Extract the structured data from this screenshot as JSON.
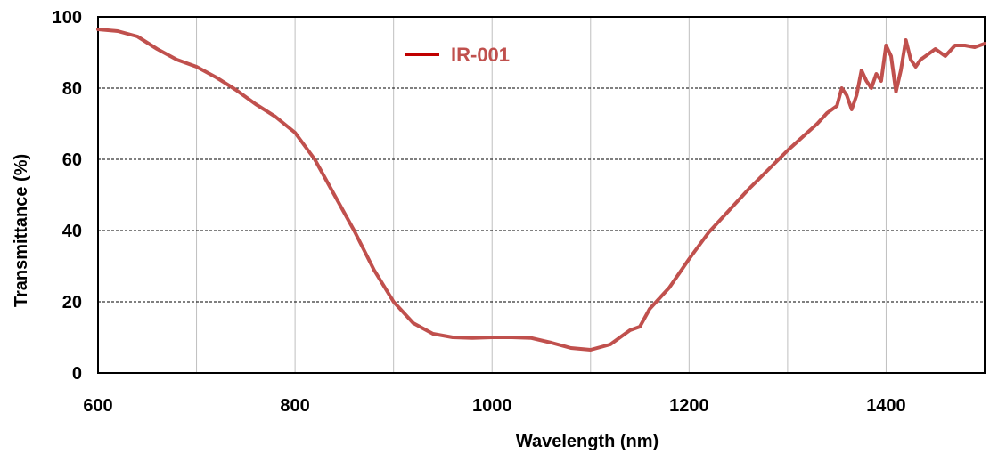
{
  "chart_data": {
    "type": "line",
    "title": "",
    "xlabel": "Wavelength (nm)",
    "ylabel": "Transmittance (%)",
    "xlim": [
      600,
      1500
    ],
    "ylim": [
      0,
      100
    ],
    "x_ticks": [
      600,
      800,
      1000,
      1200,
      1400
    ],
    "y_ticks": [
      0,
      20,
      40,
      60,
      80,
      100
    ],
    "grid": true,
    "legend_position": "top-center",
    "colors": {
      "series": "#c0504d",
      "legend_text": "#c0504d"
    },
    "series": [
      {
        "name": "IR-001",
        "x": [
          600,
          620,
          640,
          660,
          680,
          700,
          720,
          740,
          760,
          780,
          800,
          820,
          840,
          860,
          880,
          900,
          920,
          940,
          960,
          980,
          1000,
          1020,
          1040,
          1060,
          1080,
          1100,
          1120,
          1130,
          1140,
          1150,
          1160,
          1180,
          1200,
          1220,
          1240,
          1260,
          1280,
          1300,
          1320,
          1330,
          1340,
          1350,
          1355,
          1360,
          1365,
          1370,
          1375,
          1380,
          1385,
          1390,
          1395,
          1400,
          1405,
          1410,
          1415,
          1420,
          1425,
          1430,
          1435,
          1440,
          1450,
          1460,
          1470,
          1480,
          1490,
          1500
        ],
        "y": [
          96.5,
          96,
          94.5,
          91,
          88,
          86,
          83,
          79.5,
          75.5,
          72,
          67.5,
          60,
          50,
          40,
          29,
          20,
          14,
          11,
          10,
          9.8,
          10,
          10,
          9.8,
          8.5,
          7,
          6.5,
          8,
          10,
          12,
          13,
          18,
          24,
          32,
          39.5,
          45.5,
          51.5,
          57,
          62.5,
          67.5,
          70,
          73,
          75,
          80,
          78,
          74,
          78,
          85,
          82,
          80,
          84,
          82,
          92,
          89,
          79,
          85,
          93.5,
          88,
          86,
          88,
          89,
          91,
          89,
          92,
          92,
          91.5,
          92.5
        ]
      }
    ]
  }
}
